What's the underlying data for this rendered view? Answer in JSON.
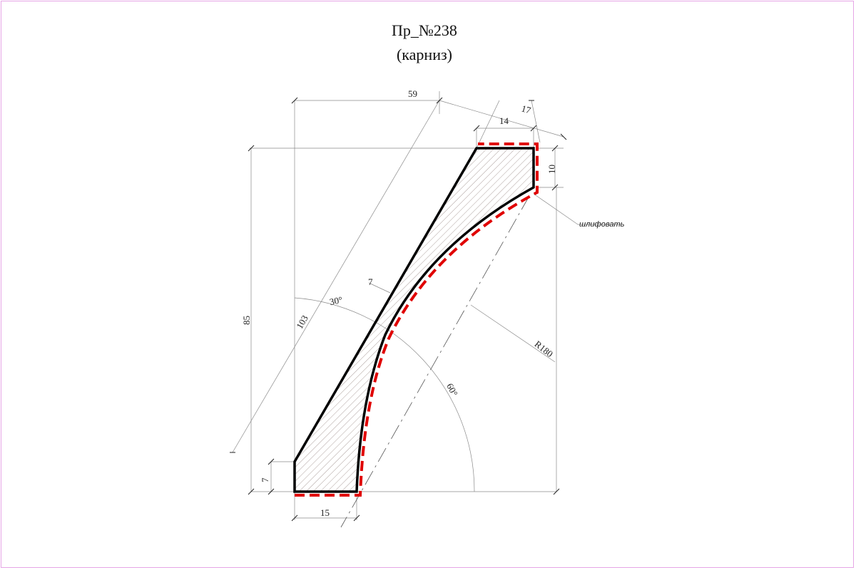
{
  "title": {
    "line1": "Пр_№238",
    "line2": "(карниз)"
  },
  "dimensions": {
    "d59": "59",
    "d17": "17",
    "d14": "14",
    "d10": "10",
    "d85": "85",
    "d103": "103",
    "d7_top": "7",
    "d30": "30°",
    "d60": "60°",
    "dR": "R180",
    "d7_left": "7",
    "d15": "15"
  },
  "annotation": {
    "sand": "шлифовать"
  },
  "colors": {
    "outline": "#000000",
    "dashed": "#e00000",
    "hatch": "#9a8a86",
    "thin": "#8a8a8a",
    "frame": "#e6a6e6"
  }
}
